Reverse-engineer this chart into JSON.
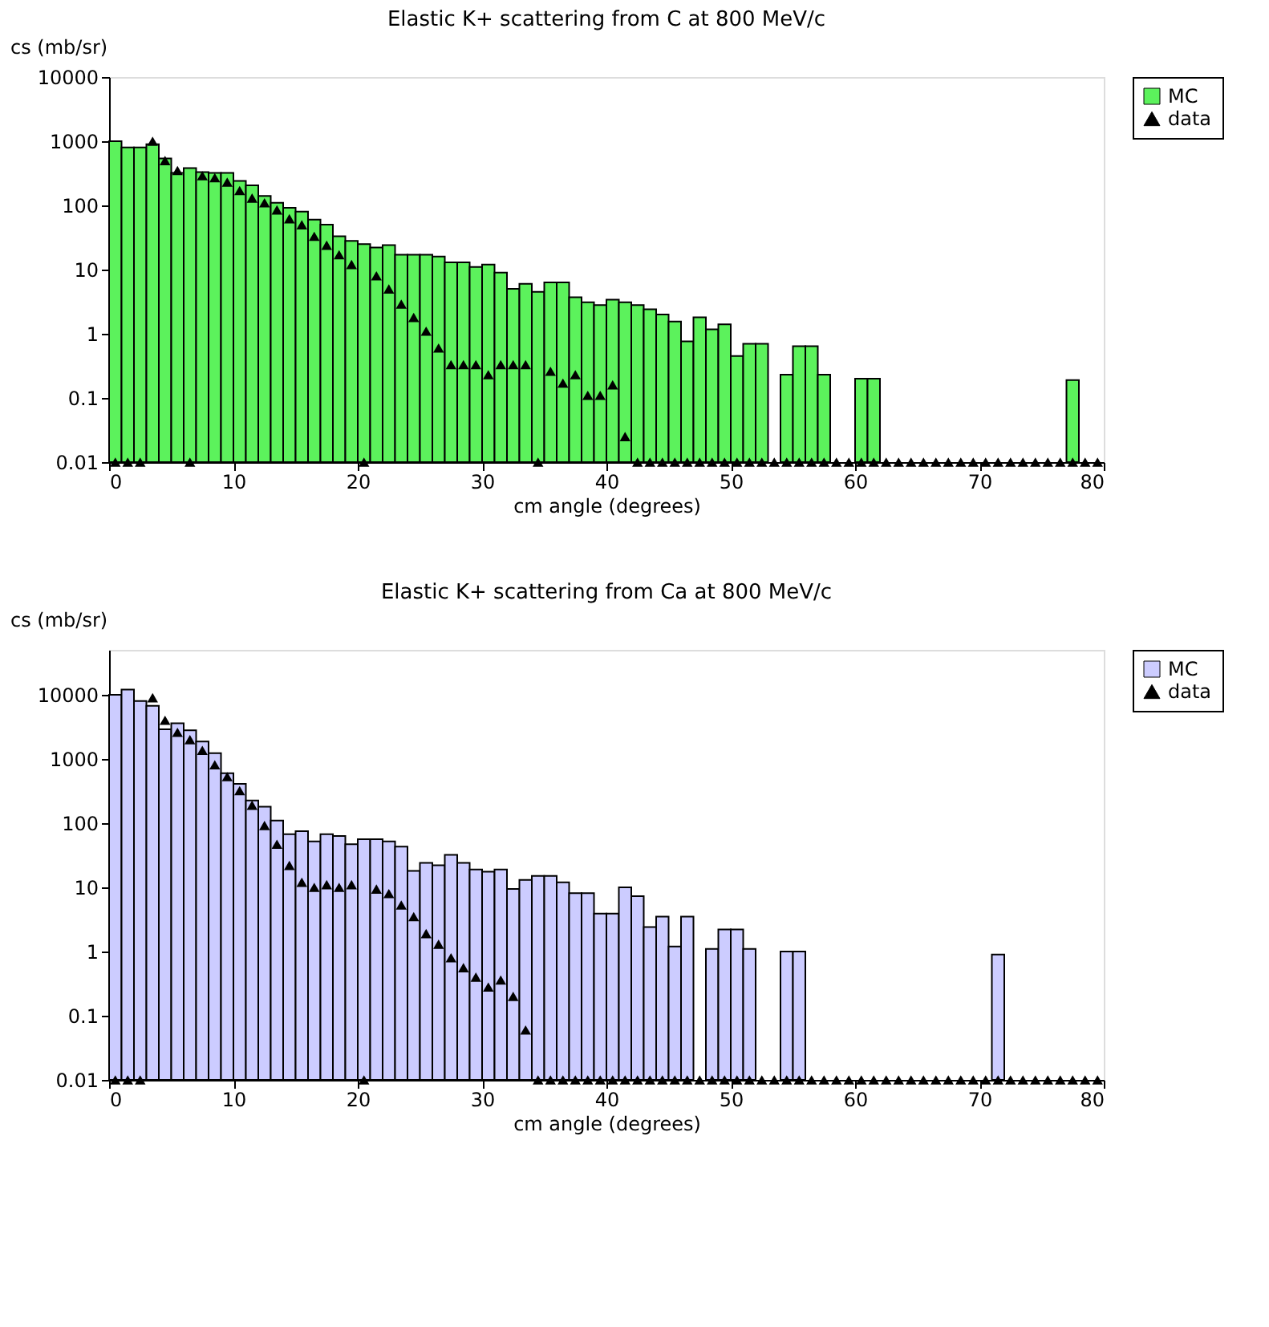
{
  "chart_data": [
    {
      "type": "histogram",
      "title": "Elastic K+ scattering from C at 800 MeV/c",
      "xlabel": "cm angle (degrees)",
      "ylabel": "cs (mb/sr)",
      "bins": [
        0,
        1,
        2,
        3,
        4,
        5,
        6,
        7,
        8,
        9,
        10,
        11,
        12,
        13,
        14,
        15,
        16,
        17,
        18,
        19,
        20,
        21,
        22,
        23,
        24,
        25,
        26,
        27,
        28,
        29,
        30,
        31,
        32,
        33,
        34,
        35,
        36,
        37,
        38,
        39,
        40,
        41,
        42,
        43,
        44,
        45,
        46,
        47,
        48,
        49,
        50,
        51,
        52,
        53,
        54,
        55,
        56,
        57,
        58,
        59,
        60,
        61,
        62,
        63,
        64,
        65,
        66,
        67,
        68,
        69,
        70,
        71,
        72,
        73,
        74,
        75,
        76,
        77,
        78,
        79,
        80
      ],
      "series": [
        {
          "name": "MC",
          "color": "#5cf25c",
          "values": [
            1000,
            800,
            800,
            900,
            540,
            320,
            380,
            330,
            320,
            320,
            240,
            205,
            140,
            110,
            92,
            80,
            60,
            50,
            33,
            28,
            25,
            22,
            24,
            17,
            17,
            17,
            16,
            13,
            13,
            11,
            12,
            9,
            5,
            6,
            4.5,
            6.3,
            6.3,
            3.7,
            3.1,
            2.8,
            3.4,
            3.1,
            2.8,
            2.4,
            2.0,
            1.55,
            0.76,
            1.8,
            1.17,
            1.4,
            0.45,
            0.7,
            0.7,
            null,
            0.23,
            0.64,
            0.64,
            0.23,
            null,
            null,
            0.2,
            0.2,
            null,
            null,
            null,
            null,
            null,
            null,
            null,
            null,
            null,
            null,
            null,
            null,
            null,
            null,
            null,
            0.19,
            null,
            null
          ]
        },
        {
          "name": "data",
          "type": "scatter",
          "color": "#000000",
          "marker": "triangle",
          "x": [
            0.5,
            1.5,
            2.5,
            3.5,
            4.5,
            5.5,
            6.5,
            7.5,
            8.5,
            9.5,
            10.5,
            11.5,
            12.5,
            13.5,
            14.5,
            15.5,
            16.5,
            17.5,
            18.5,
            19.5,
            20.5,
            21.5,
            22.5,
            23.5,
            24.5,
            25.5,
            26.5,
            27.5,
            28.5,
            29.5,
            30.5,
            31.5,
            32.5,
            33.5,
            34.5,
            35.5,
            36.5,
            37.5,
            38.5,
            39.5,
            40.5,
            41.5,
            42.5,
            43.5,
            44.5,
            45.5,
            46.5,
            47.5,
            48.5,
            49.5,
            50.5,
            51.5,
            52.5,
            53.5,
            54.5,
            55.5,
            56.5,
            57.5,
            58.5,
            59.5,
            60.5,
            61.5,
            62.5,
            63.5,
            64.5,
            65.5,
            66.5,
            67.5,
            68.5,
            69.5,
            70.5,
            71.5,
            72.5,
            73.5,
            74.5,
            75.5,
            76.5,
            77.5,
            78.5,
            79.5
          ],
          "values": [
            0.01,
            0.01,
            0.01,
            1000,
            500,
            350,
            0.01,
            290,
            270,
            230,
            170,
            130,
            110,
            85,
            62,
            50,
            33,
            24,
            17,
            12,
            0.01,
            8,
            5,
            2.9,
            1.8,
            1.1,
            0.6,
            0.33,
            0.33,
            0.33,
            0.23,
            0.33,
            0.33,
            0.33,
            0.01,
            0.26,
            0.17,
            0.23,
            0.11,
            0.11,
            0.16,
            0.025,
            0.01,
            0.01,
            0.01,
            0.01,
            0.01,
            0.01,
            0.01,
            0.01,
            0.01,
            0.01,
            0.01,
            0.01,
            0.01,
            0.01,
            0.01,
            0.01,
            0.01,
            0.01,
            0.01,
            0.01,
            0.01,
            0.01,
            0.01,
            0.01,
            0.01,
            0.01,
            0.01,
            0.01,
            0.01,
            0.01,
            0.01,
            0.01,
            0.01,
            0.01,
            0.01,
            0.01,
            0.01,
            0.01
          ]
        }
      ],
      "xlim": [
        0,
        80
      ],
      "xticks": [
        0,
        10,
        20,
        30,
        40,
        50,
        60,
        70,
        80
      ],
      "ylim": [
        0.01,
        10000
      ],
      "yticks": [
        0.01,
        0.1,
        1,
        10,
        100,
        1000,
        10000
      ],
      "log": true,
      "grid": false,
      "legend": "top right"
    },
    {
      "type": "histogram",
      "title": "Elastic K+ scattering from Ca at 800 MeV/c",
      "xlabel": "cm angle (degrees)",
      "ylabel": "cs (mb/sr)",
      "bins": [
        0,
        1,
        2,
        3,
        4,
        5,
        6,
        7,
        8,
        9,
        10,
        11,
        12,
        13,
        14,
        15,
        16,
        17,
        18,
        19,
        20,
        21,
        22,
        23,
        24,
        25,
        26,
        27,
        28,
        29,
        30,
        31,
        32,
        33,
        34,
        35,
        36,
        37,
        38,
        39,
        40,
        41,
        42,
        43,
        44,
        45,
        46,
        47,
        48,
        49,
        50,
        51,
        52,
        53,
        54,
        55,
        56,
        57,
        58,
        59,
        60,
        61,
        62,
        63,
        64,
        65,
        66,
        67,
        68,
        69,
        70,
        71,
        72,
        73,
        74,
        75,
        76,
        77,
        78,
        79,
        80
      ],
      "series": [
        {
          "name": "MC",
          "color": "#ccccff",
          "values": [
            10000,
            12000,
            8000,
            6700,
            2900,
            3600,
            2800,
            1860,
            1230,
            600,
            410,
            225,
            180,
            110,
            67,
            75,
            52,
            67,
            63,
            47,
            56,
            56,
            52,
            43,
            18,
            24,
            22,
            32,
            24,
            19,
            17.5,
            19,
            9.4,
            13,
            15,
            15,
            12,
            8.1,
            8.1,
            3.9,
            3.9,
            10,
            7.3,
            2.4,
            3.5,
            1.2,
            3.5,
            null,
            1.1,
            2.2,
            2.2,
            1.1,
            null,
            null,
            1.0,
            1.0,
            null,
            null,
            null,
            null,
            null,
            null,
            null,
            null,
            null,
            null,
            null,
            null,
            null,
            null,
            null,
            0.9,
            null,
            null,
            null,
            null,
            null,
            null,
            null,
            null
          ]
        },
        {
          "name": "data",
          "type": "scatter",
          "color": "#000000",
          "marker": "triangle",
          "x": [
            0.5,
            1.5,
            2.5,
            3.5,
            4.5,
            5.5,
            6.5,
            7.5,
            8.5,
            9.5,
            10.5,
            11.5,
            12.5,
            13.5,
            14.5,
            15.5,
            16.5,
            17.5,
            18.5,
            19.5,
            20.5,
            21.5,
            22.5,
            23.5,
            24.5,
            25.5,
            26.5,
            27.5,
            28.5,
            29.5,
            30.5,
            31.5,
            32.5,
            33.5,
            34.5,
            35.5,
            36.5,
            37.5,
            38.5,
            39.5,
            40.5,
            41.5,
            42.5,
            43.5,
            44.5,
            45.5,
            46.5,
            47.5,
            48.5,
            49.5,
            50.5,
            51.5,
            52.5,
            53.5,
            54.5,
            55.5,
            56.5,
            57.5,
            58.5,
            59.5,
            60.5,
            61.5,
            62.5,
            63.5,
            64.5,
            65.5,
            66.5,
            67.5,
            68.5,
            69.5,
            70.5,
            71.5,
            72.5,
            73.5,
            74.5,
            75.5,
            76.5,
            77.5,
            78.5,
            79.5
          ],
          "values": [
            0.01,
            0.01,
            0.01,
            9000,
            4000,
            2600,
            2000,
            1360,
            810,
            530,
            320,
            190,
            92,
            47,
            22,
            12,
            10,
            11,
            10,
            11,
            0.01,
            9.4,
            8,
            5.3,
            3.5,
            1.9,
            1.3,
            0.8,
            0.56,
            0.4,
            0.28,
            0.36,
            0.2,
            0.06,
            0.01,
            0.01,
            0.01,
            0.01,
            0.01,
            0.01,
            0.01,
            0.01,
            0.01,
            0.01,
            0.01,
            0.01,
            0.01,
            0.01,
            0.01,
            0.01,
            0.01,
            0.01,
            0.01,
            0.01,
            0.01,
            0.01,
            0.01,
            0.01,
            0.01,
            0.01,
            0.01,
            0.01,
            0.01,
            0.01,
            0.01,
            0.01,
            0.01,
            0.01,
            0.01,
            0.01,
            0.01,
            0.01,
            0.01,
            0.01,
            0.01,
            0.01,
            0.01,
            0.01,
            0.01,
            0.01
          ]
        }
      ],
      "xlim": [
        0,
        80
      ],
      "xticks": [
        0,
        10,
        20,
        30,
        40,
        50,
        60,
        70,
        80
      ],
      "ylim": [
        0.01,
        50000
      ],
      "yticks": [
        0.01,
        0.1,
        1,
        10,
        100,
        1000,
        10000
      ],
      "log": true,
      "grid": false,
      "legend": "top right"
    }
  ]
}
